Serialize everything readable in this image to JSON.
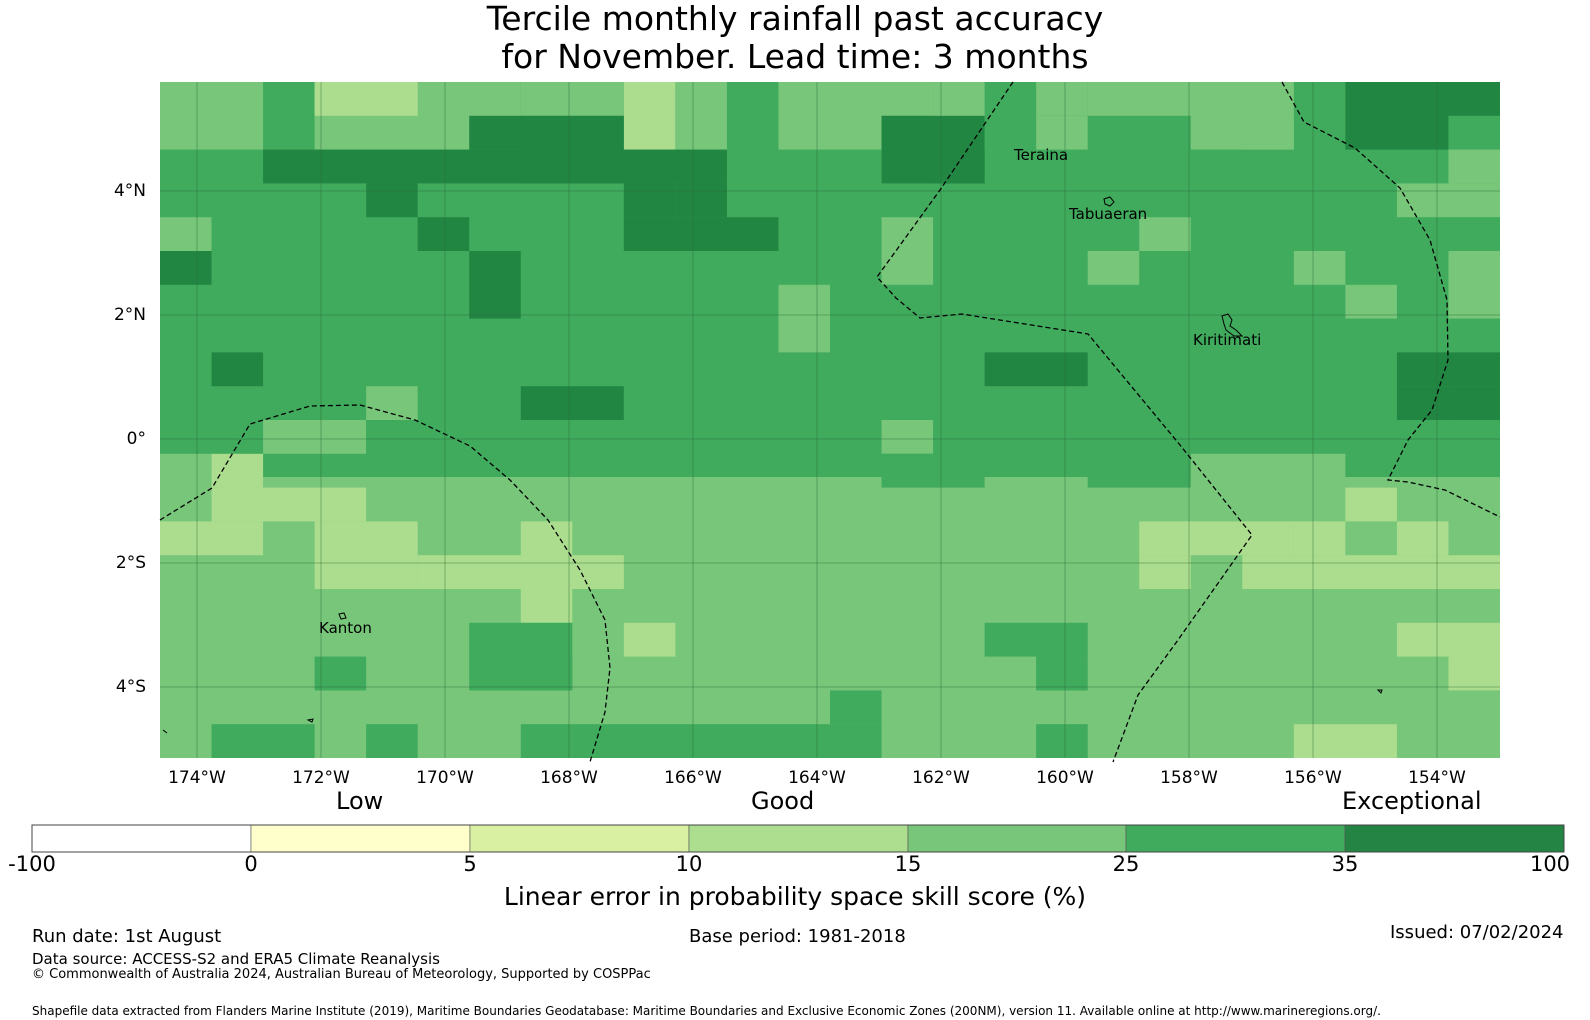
{
  "title_line1": "Tercile monthly rainfall past accuracy",
  "title_line2": "for November. Lead time: 3 months",
  "map": {
    "lat_labels": [
      "4°N",
      "2°N",
      "0°",
      "2°S",
      "4°S"
    ],
    "lon_labels": [
      "174°W",
      "172°W",
      "170°W",
      "168°W",
      "166°W",
      "164°W",
      "162°W",
      "160°W",
      "158°W",
      "156°W",
      "154°W"
    ],
    "places": [
      "Teraina",
      "Tabuaeran",
      "Kiritimati",
      "Kanton"
    ],
    "colors": {
      "low_skill": "#acdd8e",
      "moderate": "#77c67a",
      "good": "#40aa5d",
      "high": "#228643",
      "coast": "#000000"
    }
  },
  "legend": {
    "categories": [
      "Low",
      "Good",
      "Exceptional"
    ],
    "ticks": [
      "-100",
      "0",
      "5",
      "10",
      "15",
      "25",
      "35",
      "100"
    ],
    "colors": [
      "#ffffff",
      "#ffffcc",
      "#d9f0a3",
      "#addd8e",
      "#78c679",
      "#41ab5d",
      "#238443"
    ],
    "label": "Linear error in probability space skill score (%)"
  },
  "footer": {
    "run_date": "Run date: 1st August",
    "base_period": "Base period: 1981-2018",
    "issued": "Issued: 07/02/2024",
    "data_source": "Data source: ACCESS-S2 and ERA5 Climate Reanalysis",
    "copyright": "© Commonwealth of Australia 2024, Australian Bureau of Meteorology, Supported by COSPPac",
    "shapefile": "Shapefile data extracted from Flanders Marine Institute (2019), Maritime Boundaries Geodatabase: Maritime Boundaries and Exclusive Economic Zones (200NM), version 11. Available online at http://www.marineregions.org/."
  }
}
